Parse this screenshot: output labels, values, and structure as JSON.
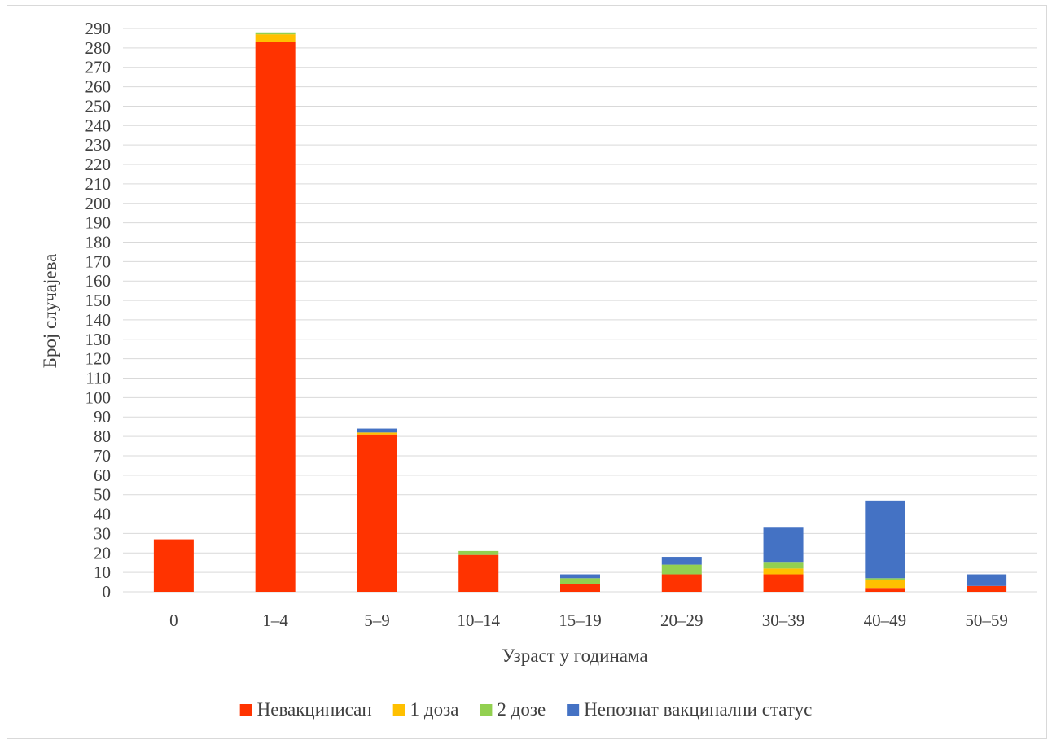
{
  "chart_data": {
    "type": "bar",
    "stacked": true,
    "categories": [
      "0",
      "1–4",
      "5–9",
      "10–14",
      "15–19",
      "20–29",
      "30–39",
      "40–49",
      "50–59"
    ],
    "series": [
      {
        "name": "Невакцинисан",
        "color": "#FF3300",
        "values": [
          27,
          283,
          81,
          19,
          4,
          9,
          9,
          2,
          3
        ]
      },
      {
        "name": "1 доза",
        "color": "#FFC000",
        "values": [
          0,
          4,
          1,
          0,
          0,
          0,
          3,
          4,
          0
        ]
      },
      {
        "name": "2 дозе",
        "color": "#92D050",
        "values": [
          0,
          1,
          0,
          2,
          3,
          5,
          3,
          1,
          0
        ]
      },
      {
        "name": "Непознат вакцинални статус",
        "color": "#4472C4",
        "values": [
          0,
          0,
          2,
          0,
          2,
          4,
          18,
          40,
          6
        ]
      }
    ],
    "title": "",
    "xlabel": "Узраст у годинама",
    "ylabel": "Број случајева",
    "ylim": [
      0,
      290
    ],
    "ytick_step": 10,
    "grid": true,
    "legend_position": "bottom"
  }
}
